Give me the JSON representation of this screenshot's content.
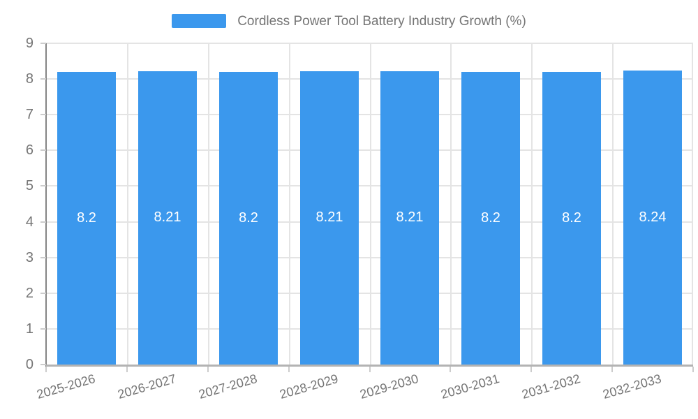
{
  "chart_data": {
    "type": "bar",
    "title": "Cordless Power Tool Battery Industry Growth (%)",
    "categories": [
      "2025-2026",
      "2026-2027",
      "2027-2028",
      "2028-2029",
      "2029-2030",
      "2030-2031",
      "2031-2032",
      "2032-2033"
    ],
    "values": [
      8.2,
      8.21,
      8.2,
      8.21,
      8.21,
      8.2,
      8.2,
      8.24
    ],
    "xlabel": "",
    "ylabel": "",
    "ylim": [
      0,
      9
    ],
    "y_ticks": [
      0,
      1,
      2,
      3,
      4,
      5,
      6,
      7,
      8,
      9
    ],
    "grid": true,
    "legend_position": "top",
    "bar_labels_position": "inside-center"
  },
  "colors": {
    "bar": "#3b98ed",
    "bar_value_label": "#ffffff",
    "gridline": "#e4e4e4",
    "y_axis_line": "#848484",
    "x_axis_line": "#b3b3b3",
    "tick_mark": "#cccccc",
    "axis_text": "#757575",
    "legend_text": "#757575",
    "background": "#ffffff"
  }
}
